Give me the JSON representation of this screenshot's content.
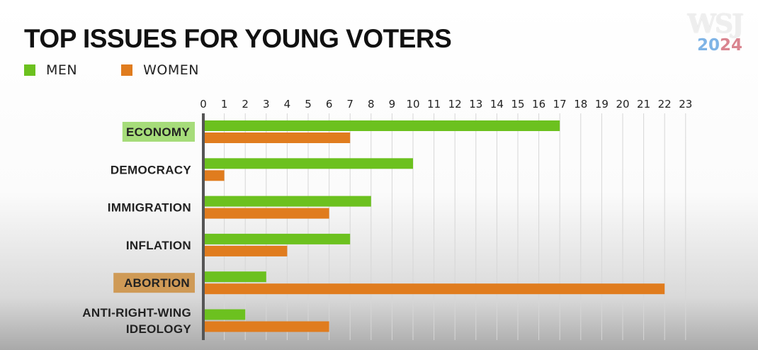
{
  "header": {
    "title": "TOP ISSUES FOR YOUNG VOTERS"
  },
  "logo": {
    "brand": "WSJ",
    "year_part1": "20",
    "year_part2": "24"
  },
  "colors": {
    "men": "#6cc11f",
    "women": "#e07c1e",
    "economy_highlight": "#a6dc7a",
    "abortion_highlight": "#cf9a56",
    "grid": "#d6d6d6",
    "axis": "#555555"
  },
  "chart_data": {
    "type": "bar",
    "orientation": "horizontal",
    "title": "TOP ISSUES FOR YOUNG VOTERS",
    "categories": [
      [
        "ECONOMY"
      ],
      [
        "DEMOCRACY"
      ],
      [
        "IMMIGRATION"
      ],
      [
        "INFLATION"
      ],
      [
        "ABORTION"
      ],
      [
        "ANTI-RIGHT-WING",
        "IDEOLOGY"
      ]
    ],
    "highlighted": [
      0,
      4
    ],
    "series": [
      {
        "name": "MEN",
        "values": [
          17,
          10,
          8,
          7,
          3,
          2
        ]
      },
      {
        "name": "WOMEN",
        "values": [
          7,
          1,
          6,
          4,
          22,
          6
        ]
      }
    ],
    "xlim": [
      0,
      23
    ],
    "xticks": [
      0,
      1,
      2,
      3,
      4,
      5,
      6,
      7,
      8,
      9,
      10,
      11,
      12,
      13,
      14,
      15,
      16,
      17,
      18,
      19,
      20,
      21,
      22,
      23
    ],
    "grid": true,
    "legend_position": "top-left"
  }
}
